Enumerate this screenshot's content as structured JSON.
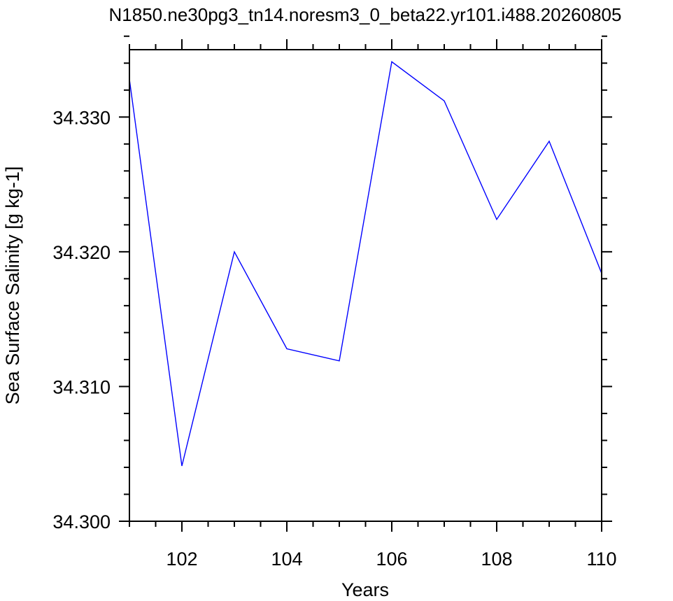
{
  "chart_data": {
    "type": "line",
    "title": "N1850.ne30pg3_tn14.noresm3_0_beta22.yr101.i488.20260805",
    "xlabel": "Years",
    "ylabel": "Sea Surface Salinity [g kg-1]",
    "xlim": [
      101,
      110
    ],
    "ylim": [
      34.3,
      34.335
    ],
    "x_ticks": [
      102,
      104,
      106,
      108,
      110
    ],
    "x_tick_labels": [
      "102",
      "104",
      "106",
      "108",
      "110"
    ],
    "y_ticks": [
      34.3,
      34.31,
      34.32,
      34.33
    ],
    "y_tick_labels": [
      "34.300",
      "34.310",
      "34.320",
      "34.330"
    ],
    "grid": false,
    "series": [
      {
        "color": "#0000ff",
        "x": [
          101,
          102,
          103,
          104,
          105,
          106,
          107,
          108,
          109,
          110
        ],
        "values": [
          34.3328,
          34.3041,
          34.32,
          34.3128,
          34.3119,
          34.3341,
          34.3312,
          34.3224,
          34.3282,
          34.3184
        ]
      }
    ]
  }
}
